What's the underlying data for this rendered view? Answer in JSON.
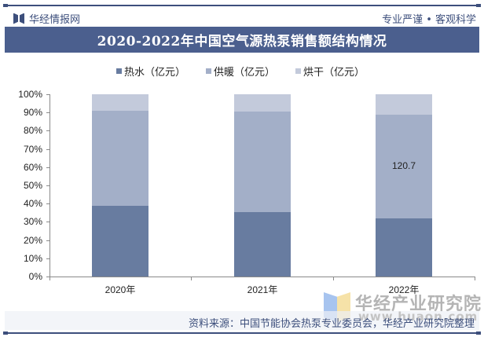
{
  "header": {
    "brand": "华经情报网",
    "slogan": "专业严谨 • 客观科学",
    "title": "2020-2022年中国空气源热泵销售额结构情况"
  },
  "legend": [
    {
      "label": "热水（亿元）",
      "color": "#687ca0"
    },
    {
      "label": "供暖（亿元）",
      "color": "#a3afc8"
    },
    {
      "label": "烘干（亿元）",
      "color": "#c3cadb"
    }
  ],
  "footer": {
    "source": "资料来源：中国节能协会热泵专业委员会，华经产业研究院整理",
    "watermark_name": "华经产业研究院",
    "watermark_url": "www.huaon.com"
  },
  "chart_data": {
    "type": "bar",
    "stacked": true,
    "percent_stacked": true,
    "title": "2020-2022年中国空气源热泵销售额结构情况",
    "categories": [
      "2020年",
      "2021年",
      "2022年"
    ],
    "series": [
      {
        "name": "热水（亿元）",
        "values_percent": [
          39,
          35.5,
          32
        ],
        "color": "#687ca0"
      },
      {
        "name": "供暖（亿元）",
        "values_percent": [
          52,
          55,
          57
        ],
        "color": "#a3afc8"
      },
      {
        "name": "烘干（亿元）",
        "values_percent": [
          9,
          9.5,
          11
        ],
        "color": "#c3cadb"
      }
    ],
    "annotations": [
      {
        "category": "2022年",
        "series": "供暖（亿元）",
        "text": "120.7"
      }
    ],
    "xlabel": "",
    "ylabel": "",
    "yticks": [
      "0%",
      "10%",
      "20%",
      "30%",
      "40%",
      "50%",
      "60%",
      "70%",
      "80%",
      "90%",
      "100%"
    ],
    "ylim": [
      0,
      100
    ],
    "grid": false,
    "legend_position": "top"
  }
}
